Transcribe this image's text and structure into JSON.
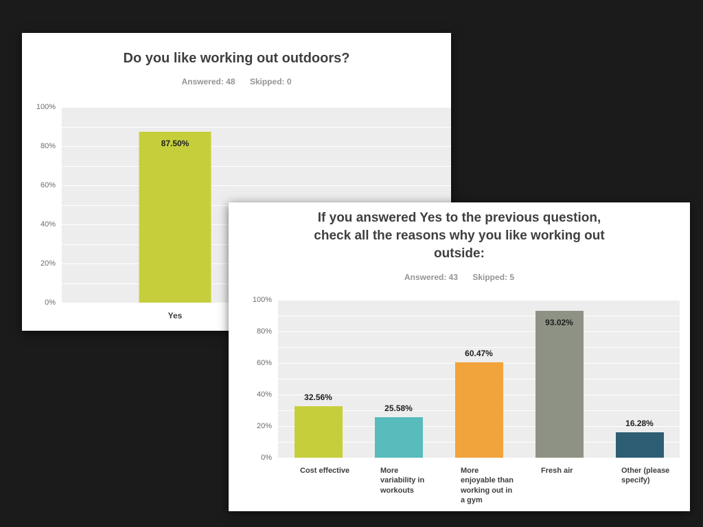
{
  "page": {
    "background_color": "#1b1b1b",
    "card_background_color": "#ffffff",
    "plot_background_color": "#ededed"
  },
  "chart_data": [
    {
      "type": "bar",
      "title": "Do you like working out outdoors?",
      "stats": {
        "answered": "Answered: 48",
        "skipped": "Skipped: 0"
      },
      "answered": 48,
      "skipped": 0,
      "categories": [
        "Yes"
      ],
      "values": [
        87.5
      ],
      "value_labels": [
        "87.50%"
      ],
      "bar_colors": [
        "#c6cf3b"
      ],
      "xlabel": "",
      "ylabel": "",
      "ylim": [
        0,
        100
      ],
      "y_ticks": [
        "100%",
        "80%",
        "60%",
        "40%",
        "20%",
        "0%"
      ],
      "grid": true,
      "legend": "none"
    },
    {
      "type": "bar",
      "title": "If you answered Yes to the previous question, check all the reasons why you like working out outside:",
      "stats": {
        "answered": "Answered: 43",
        "skipped": "Skipped: 5"
      },
      "answered": 43,
      "skipped": 5,
      "categories": [
        "Cost effective",
        "More variability in workouts",
        "More enjoyable than working out in a gym",
        "Fresh air",
        "Other (please specify)"
      ],
      "values": [
        32.56,
        25.58,
        60.47,
        93.02,
        16.28
      ],
      "value_labels": [
        "32.56%",
        "25.58%",
        "60.47%",
        "93.02%",
        "16.28%"
      ],
      "bar_colors": [
        "#c6cf3b",
        "#58bbbc",
        "#f1a33c",
        "#8d9284",
        "#2d5e74"
      ],
      "xlabel": "",
      "ylabel": "",
      "ylim": [
        0,
        100
      ],
      "y_ticks": [
        "100%",
        "80%",
        "60%",
        "40%",
        "20%",
        "0%"
      ],
      "grid": true,
      "legend": "none"
    }
  ]
}
